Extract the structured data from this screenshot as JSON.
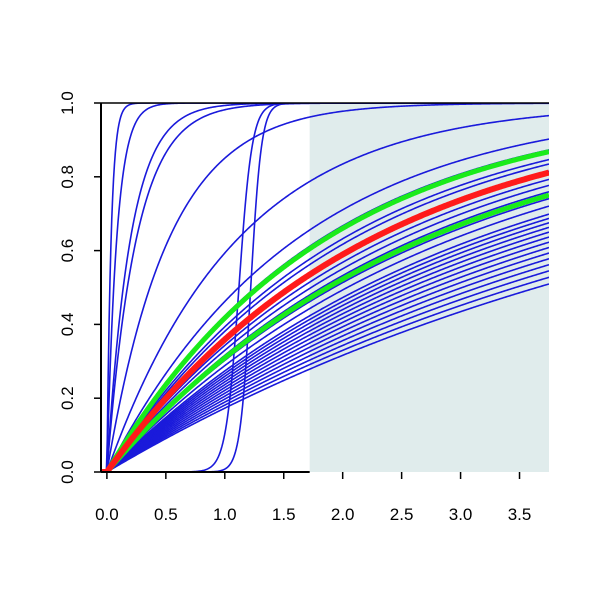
{
  "chart_data": {
    "type": "line",
    "title": "",
    "xlabel": "",
    "ylabel": "",
    "xlim": [
      -0.05,
      3.75
    ],
    "ylim": [
      0,
      1
    ],
    "x_ticks": [
      "0.0",
      "0.5",
      "1.0",
      "1.5",
      "2.0",
      "2.5",
      "3.0",
      "3.5"
    ],
    "y_ticks": [
      "0.0",
      "0.2",
      "0.4",
      "0.6",
      "0.8",
      "1.0"
    ],
    "shaded_region": {
      "x_from": 1.72,
      "x_to": 3.75,
      "y_from": 0,
      "y_to": 1,
      "color": "#e0ecec"
    },
    "colors": {
      "curves": "#1a1adb",
      "highlight_inner": "#ff1a1a",
      "highlight_bounds": "#1aeb1a",
      "axis": "#000000"
    },
    "curve_families": {
      "exponential_cdf_rates": [
        28,
        12,
        5,
        4,
        1.9,
        0.9,
        0.62,
        0.55,
        0.5,
        0.48,
        0.45,
        0.42,
        0.4,
        0.38,
        0.36,
        0.34,
        0.32,
        0.31,
        0.3,
        0.29,
        0.28,
        0.27,
        0.26,
        0.25,
        0.24,
        0.23,
        0.22,
        0.21,
        0.2,
        0.19
      ],
      "logistic_curves": [
        {
          "midpoint": 1.22,
          "slope": 22
        },
        {
          "midpoint": 1.12,
          "slope": 18
        }
      ],
      "highlight": {
        "rate": 0.445,
        "lower_bound_rate": 0.37,
        "upper_bound_rate": 0.54
      }
    }
  }
}
